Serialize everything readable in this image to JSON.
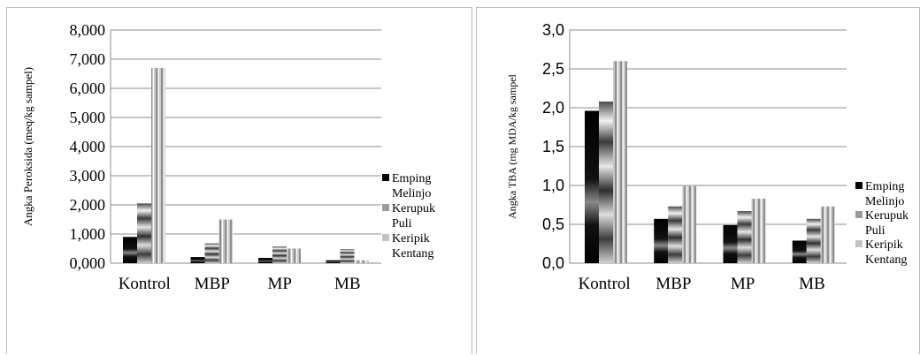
{
  "chart_data": [
    {
      "type": "bar",
      "categories": [
        "Kontrol",
        "MBP",
        "MP",
        "MB"
      ],
      "series": [
        {
          "name": "Emping Melinjo",
          "values": [
            0.9,
            0.21,
            0.18,
            0.1
          ]
        },
        {
          "name": "Kerupuk Puli",
          "values": [
            2.05,
            0.68,
            0.57,
            0.48
          ]
        },
        {
          "name": "Keripik Kentang",
          "values": [
            6.7,
            1.5,
            0.5,
            0.1
          ]
        }
      ],
      "ylabel": "Angka Peroksida (meq/kg sampel)",
      "ylim": [
        0,
        8
      ],
      "yticks": [
        "0,000",
        "1,000",
        "2,000",
        "3,000",
        "4,000",
        "5,000",
        "6,000",
        "7,000",
        "8,000"
      ],
      "grid": true,
      "legend": [
        "Emping",
        "Melinjo",
        "Kerupuk",
        "Puli",
        "Keripik",
        "Kentang"
      ],
      "legend_position": "right"
    },
    {
      "type": "bar",
      "categories": [
        "Kontrol",
        "MBP",
        "MP",
        "MB"
      ],
      "series": [
        {
          "name": "Emping Melinjo",
          "values": [
            1.96,
            0.57,
            0.49,
            0.29
          ]
        },
        {
          "name": "Kerupuk Puli",
          "values": [
            2.08,
            0.73,
            0.67,
            0.57
          ]
        },
        {
          "name": "Keripik Kentang",
          "values": [
            2.6,
            0.99,
            0.83,
            0.73
          ]
        }
      ],
      "ylabel": "Angka TBA (mg MDA/kg sampel",
      "ylim": [
        0,
        3
      ],
      "yticks": [
        "0,0",
        "0,5",
        "1,0",
        "1,5",
        "2,0",
        "2,5",
        "3,0"
      ],
      "grid": true,
      "legend": [
        "Emping",
        "Melinjo",
        "Kerupuk",
        "Puli",
        "Keripik",
        "Kentang"
      ],
      "legend_position": "right"
    }
  ]
}
